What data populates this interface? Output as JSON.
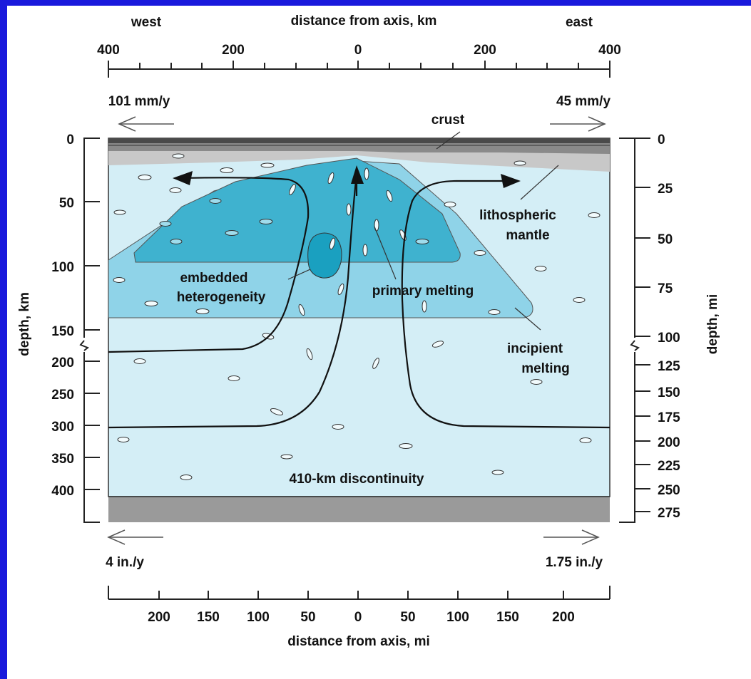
{
  "top_axis": {
    "left_label": "west",
    "title": "distance from axis, km",
    "right_label": "east",
    "ticks": [
      "400",
      "200",
      "0",
      "200",
      "400"
    ]
  },
  "rates": {
    "west_top": "101 mm/y",
    "east_top": "45 mm/y",
    "west_bottom": "4 in./y",
    "east_bottom": "1.75 in./y"
  },
  "left_axis": {
    "title": "depth, km",
    "ticks": [
      "0",
      "50",
      "100",
      "150",
      "200",
      "250",
      "300",
      "350",
      "400"
    ]
  },
  "right_axis": {
    "title": "depth, mi",
    "ticks": [
      "0",
      "25",
      "50",
      "75",
      "100",
      "125",
      "150",
      "175",
      "200",
      "225",
      "250",
      "275"
    ]
  },
  "bottom_axis": {
    "title": "distance from axis, mi",
    "ticks": [
      "200",
      "150",
      "100",
      "50",
      "0",
      "50",
      "100",
      "150",
      "200"
    ]
  },
  "labels": {
    "crust": "crust",
    "lithospheric_1": "lithospheric",
    "lithospheric_2": "mantle",
    "embedded_1": "embedded",
    "embedded_2": "heterogeneity",
    "primary": "primary melting",
    "incipient_1": "incipient",
    "incipient_2": "melting",
    "discontinuity": "410-km discontinuity"
  },
  "colors": {
    "frame": "#1a1adc",
    "mantle_light": "#d4eef6",
    "incipient": "#8fd3e8",
    "primary": "#3fb2cf",
    "heterogeneity": "#1aa0c0",
    "lithosphere": "#c8c8c8",
    "crust_dark": "#5a5a5a",
    "below_410": "#9a9a9a"
  }
}
